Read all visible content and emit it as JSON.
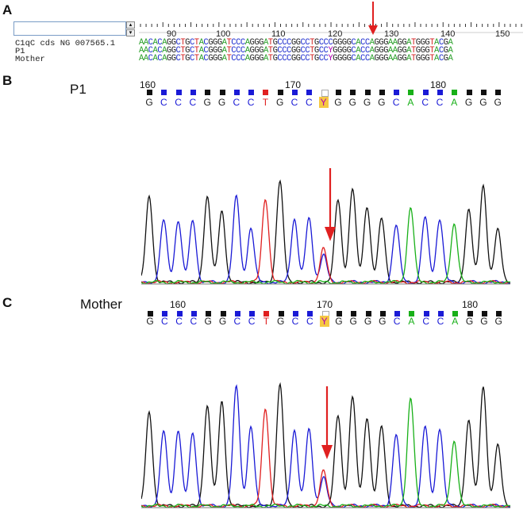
{
  "panels": {
    "a": "A",
    "b": "B",
    "c": "C"
  },
  "alignment": {
    "row_labels": [
      "C1qC cds NG 007565.1",
      "P1",
      "Mother"
    ],
    "ruler_numbers": [
      "90",
      "100",
      "110",
      "120",
      "130",
      "140",
      "150"
    ],
    "sequences": [
      "AACACAGGCTGCTACGGGATCCCAGGGATGCCCGGCCTGCCCGGGGCACCAGGGAAGGATGGGTACGA",
      "AACACAGGCTGCTACGGGATCCCAGGGATGCCCGGCCTGCCYGGGGCACCAGGGAAGGATGGGTACGA",
      "AACACAGGCTGCTACGGGATCCCAGGGATGCCCGGCCTGCCYGGGGCACCAGGGAAGGATGGGTACGA"
    ],
    "colors": {
      "A": "#2aa02a",
      "C": "#1f2fcf",
      "G": "#222222",
      "T": "#d42020",
      "Y": "#b000b0"
    }
  },
  "trace_p1": {
    "sample_label": "P1",
    "position_numbers": [
      "160",
      "170",
      "180"
    ],
    "bases": [
      "G",
      "C",
      "C",
      "C",
      "G",
      "G",
      "C",
      "C",
      "T",
      "G",
      "C",
      "C",
      "Y",
      "G",
      "G",
      "G",
      "G",
      "C",
      "A",
      "C",
      "C",
      "A",
      "G",
      "G",
      "G"
    ]
  },
  "trace_mother": {
    "sample_label": "Mother",
    "position_numbers": [
      "160",
      "170",
      "180"
    ],
    "bases": [
      "G",
      "C",
      "C",
      "C",
      "G",
      "G",
      "C",
      "C",
      "T",
      "G",
      "C",
      "C",
      "Y",
      "G",
      "G",
      "G",
      "G",
      "C",
      "A",
      "C",
      "C",
      "A",
      "G",
      "G",
      "G"
    ]
  },
  "colors": {
    "arrow": "#e02020",
    "G": "#111111",
    "C": "#1a1ad6",
    "T": "#e02020",
    "A": "#18b018",
    "Y_highlight": "#f5c842"
  }
}
